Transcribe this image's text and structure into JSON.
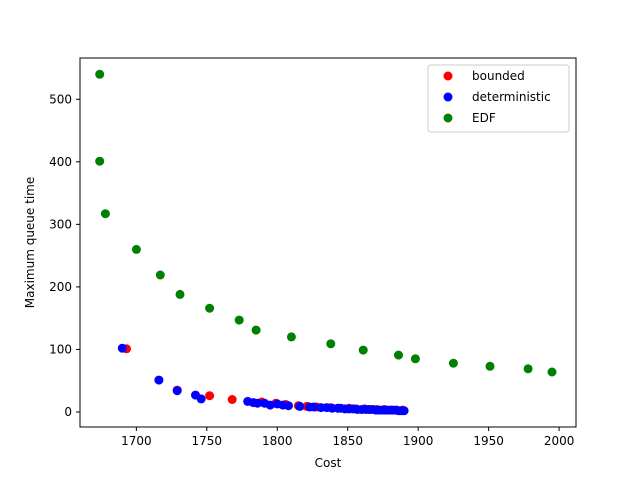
{
  "chart_data": {
    "type": "scatter",
    "title": "",
    "xlabel": "Cost",
    "ylabel": "Maximum queue time",
    "xlim": [
      1660,
      2012
    ],
    "ylim": [
      -24,
      566
    ],
    "xticks": [
      1700,
      1750,
      1800,
      1850,
      1900,
      1950,
      2000
    ],
    "yticks": [
      0,
      100,
      200,
      300,
      400,
      500
    ],
    "grid": false,
    "legend_position": "top-right",
    "series": [
      {
        "name": "bounded",
        "color": "#ff0000",
        "points": [
          [
            1693,
            101
          ],
          [
            1729,
            35
          ],
          [
            1752,
            26
          ],
          [
            1768,
            20
          ],
          [
            1789,
            16
          ],
          [
            1799,
            14
          ],
          [
            1806,
            12
          ],
          [
            1815,
            10
          ],
          [
            1821,
            9
          ],
          [
            1828,
            8
          ],
          [
            1838,
            7
          ],
          [
            1843,
            6
          ],
          [
            1851,
            6
          ],
          [
            1856,
            5
          ],
          [
            1862,
            5
          ],
          [
            1866,
            4
          ],
          [
            1871,
            4
          ],
          [
            1876,
            4
          ],
          [
            1881,
            3
          ],
          [
            1885,
            3
          ],
          [
            1889,
            3
          ]
        ]
      },
      {
        "name": "deterministic",
        "color": "#0000ff",
        "points": [
          [
            1690,
            102
          ],
          [
            1716,
            51
          ],
          [
            1729,
            34
          ],
          [
            1742,
            27
          ],
          [
            1746,
            21
          ],
          [
            1779,
            17
          ],
          [
            1783,
            15
          ],
          [
            1786,
            14
          ],
          [
            1791,
            14
          ],
          [
            1795,
            11
          ],
          [
            1800,
            13
          ],
          [
            1804,
            11
          ],
          [
            1808,
            10
          ],
          [
            1816,
            9
          ],
          [
            1823,
            8
          ],
          [
            1826,
            8
          ],
          [
            1831,
            7
          ],
          [
            1835,
            7
          ],
          [
            1839,
            6
          ],
          [
            1843,
            6
          ],
          [
            1845,
            6
          ],
          [
            1848,
            5
          ],
          [
            1851,
            5
          ],
          [
            1854,
            5
          ],
          [
            1857,
            4
          ],
          [
            1860,
            4
          ],
          [
            1863,
            4
          ],
          [
            1865,
            4
          ],
          [
            1868,
            4
          ],
          [
            1870,
            3
          ],
          [
            1872,
            3
          ],
          [
            1874,
            3
          ],
          [
            1876,
            3
          ],
          [
            1878,
            3
          ],
          [
            1880,
            3
          ],
          [
            1882,
            3
          ],
          [
            1884,
            3
          ],
          [
            1886,
            2
          ],
          [
            1888,
            2
          ],
          [
            1890,
            2
          ]
        ]
      },
      {
        "name": "EDF",
        "color": "#008000",
        "points": [
          [
            1674,
            540
          ],
          [
            1674,
            401
          ],
          [
            1678,
            317
          ],
          [
            1700,
            260
          ],
          [
            1717,
            219
          ],
          [
            1731,
            188
          ],
          [
            1752,
            166
          ],
          [
            1773,
            147
          ],
          [
            1785,
            131
          ],
          [
            1810,
            120
          ],
          [
            1838,
            109
          ],
          [
            1861,
            99
          ],
          [
            1886,
            91
          ],
          [
            1898,
            85
          ],
          [
            1925,
            78
          ],
          [
            1951,
            73
          ],
          [
            1978,
            69
          ],
          [
            1995,
            64
          ]
        ]
      }
    ]
  }
}
